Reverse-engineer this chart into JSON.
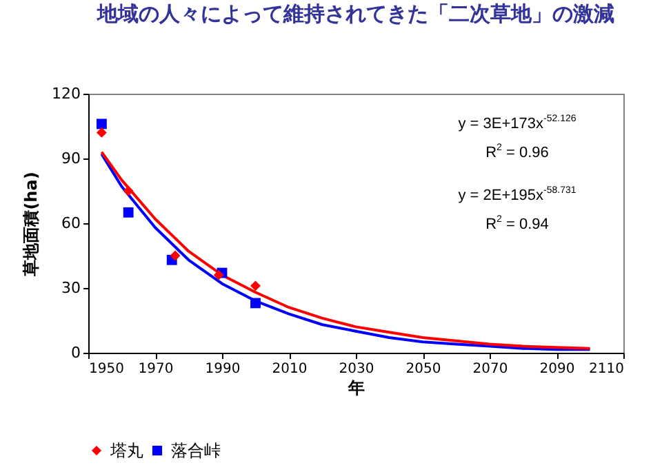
{
  "chart_data": {
    "type": "scatter",
    "title": "地域の人々によって維持されてきた「二次草地」の激減",
    "xlabel": "年",
    "ylabel": "草地面積(ha)",
    "xlim": [
      1950,
      2110
    ],
    "xticks": [
      1950,
      1970,
      1990,
      2010,
      2030,
      2050,
      2070,
      2090,
      2110
    ],
    "ylim": [
      0,
      120
    ],
    "yticks": [
      0,
      30,
      60,
      90,
      120
    ],
    "grid": false,
    "legend": "bottom",
    "series": [
      {
        "name": "塔丸",
        "marker": "diamond",
        "color": "#ff0000",
        "x": [
          1954,
          1962,
          1976,
          1989,
          2000
        ],
        "values": [
          102,
          75,
          45,
          36,
          31
        ]
      },
      {
        "name": "落合峠",
        "marker": "square",
        "color": "#0000ff",
        "x": [
          1954,
          1962,
          1975,
          1990,
          2000
        ],
        "values": [
          106,
          65,
          43,
          37,
          23
        ]
      },
      {
        "type": "line",
        "color": "#ff0000",
        "x": [
          1954,
          1960,
          1970,
          1980,
          1990,
          2000,
          2010,
          2020,
          2030,
          2040,
          2050,
          2060,
          2070,
          2080,
          2090,
          2100
        ],
        "values": [
          93,
          80,
          62,
          47,
          36,
          28,
          21,
          16,
          12,
          9.5,
          7,
          5.5,
          4,
          3,
          2.5,
          2
        ]
      },
      {
        "type": "line",
        "color": "#0000ff",
        "x": [
          1954,
          1960,
          1970,
          1980,
          1990,
          2000,
          2010,
          2020,
          2030,
          2040,
          2050,
          2060,
          2070,
          2080,
          2090,
          2100
        ],
        "values": [
          92,
          77,
          58,
          43,
          32,
          24,
          18,
          13,
          10,
          7,
          5,
          4,
          3,
          2,
          1.5,
          1.5
        ]
      }
    ],
    "annotations": [
      "y = 3E+173x$^{-52.126}$",
      "R$^{2}$ = 0.96",
      "y = 2E+195x$^{-58.731}$",
      "R$^{2}$ = 0.94"
    ]
  }
}
